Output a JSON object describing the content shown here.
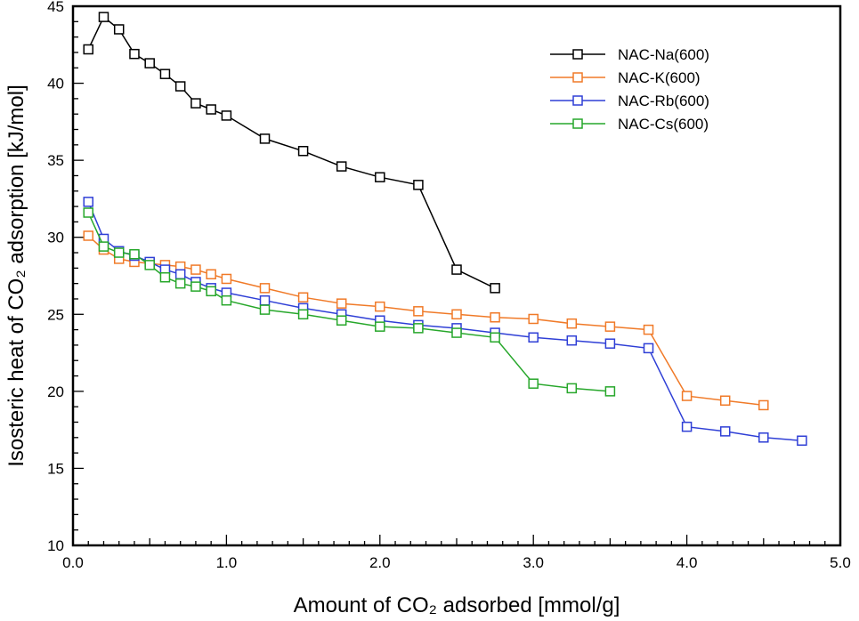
{
  "chart_data": {
    "type": "line",
    "xlabel": "Amount of CO₂ adsorbed [mmol/g]",
    "ylabel": "Isosteric heat of CO₂ adsorption [kJ/mol]",
    "xlim": [
      0,
      5
    ],
    "ylim": [
      10,
      45
    ],
    "x_ticks": [
      0,
      1,
      2,
      3,
      4,
      5
    ],
    "x_tick_labels": [
      "0.0",
      "1.0",
      "2.0",
      "3.0",
      "4.0",
      "5.0"
    ],
    "y_ticks": [
      10,
      15,
      20,
      25,
      30,
      35,
      40,
      45
    ],
    "y_tick_labels": [
      "10",
      "15",
      "20",
      "25",
      "30",
      "35",
      "40",
      "45"
    ],
    "grid": false,
    "legend_position": "top-right",
    "marker": "open-square",
    "series": [
      {
        "name": "NAC-Na(600)",
        "color": "#000000",
        "x": [
          0.1,
          0.2,
          0.3,
          0.4,
          0.5,
          0.6,
          0.7,
          0.8,
          0.9,
          1.0,
          1.25,
          1.5,
          1.75,
          2.0,
          2.25,
          2.5,
          2.75
        ],
        "y": [
          42.2,
          44.3,
          43.5,
          41.9,
          41.3,
          40.6,
          39.8,
          38.7,
          38.3,
          37.9,
          36.4,
          35.6,
          34.6,
          33.9,
          33.4,
          27.9,
          26.7
        ]
      },
      {
        "name": "NAC-K(600)",
        "color": "#f07a28",
        "x": [
          0.1,
          0.2,
          0.3,
          0.4,
          0.5,
          0.6,
          0.7,
          0.8,
          0.9,
          1.0,
          1.25,
          1.5,
          1.75,
          2.0,
          2.25,
          2.5,
          2.75,
          3.0,
          3.25,
          3.5,
          3.75,
          4.0,
          4.25,
          4.5
        ],
        "y": [
          30.1,
          29.2,
          28.6,
          28.4,
          28.3,
          28.2,
          28.1,
          27.9,
          27.6,
          27.3,
          26.7,
          26.1,
          25.7,
          25.5,
          25.2,
          25.0,
          24.8,
          24.7,
          24.4,
          24.2,
          24.0,
          19.7,
          19.4,
          19.1
        ]
      },
      {
        "name": "NAC-Rb(600)",
        "color": "#2f3fd6",
        "x": [
          0.1,
          0.2,
          0.3,
          0.4,
          0.5,
          0.6,
          0.7,
          0.8,
          0.9,
          1.0,
          1.25,
          1.5,
          1.75,
          2.0,
          2.25,
          2.5,
          2.75,
          3.0,
          3.25,
          3.5,
          3.75,
          4.0,
          4.25,
          4.5,
          4.75
        ],
        "y": [
          32.3,
          29.9,
          29.1,
          28.8,
          28.4,
          27.9,
          27.6,
          27.1,
          26.7,
          26.4,
          25.9,
          25.4,
          25.0,
          24.6,
          24.3,
          24.1,
          23.8,
          23.5,
          23.3,
          23.1,
          22.8,
          17.7,
          17.4,
          17.0,
          16.8
        ]
      },
      {
        "name": "NAC-Cs(600)",
        "color": "#27a72b",
        "x": [
          0.1,
          0.2,
          0.3,
          0.4,
          0.5,
          0.6,
          0.7,
          0.8,
          0.9,
          1.0,
          1.25,
          1.5,
          1.75,
          2.0,
          2.25,
          2.5,
          2.75,
          3.0,
          3.25,
          3.5
        ],
        "y": [
          31.6,
          29.4,
          29.0,
          28.9,
          28.2,
          27.4,
          27.0,
          26.8,
          26.5,
          25.9,
          25.3,
          25.0,
          24.6,
          24.2,
          24.1,
          23.8,
          23.5,
          20.5,
          20.2,
          20.0
        ]
      }
    ]
  }
}
